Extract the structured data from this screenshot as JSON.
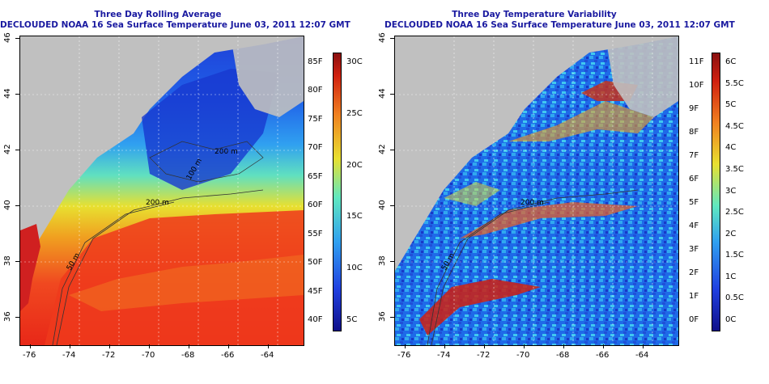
{
  "left_panel": {
    "title_line1": "Three Day Rolling Average",
    "title_line2": "DECLOUDED NOAA 16 Sea Surface Temperature June 03, 2011 12:07 GMT",
    "x_ticks": [
      "-76",
      "-74",
      "-72",
      "-70",
      "-68",
      "-66",
      "-64"
    ],
    "y_ticks": [
      "36",
      "38",
      "40",
      "42",
      "44",
      "46"
    ],
    "contours": [
      "200 m",
      "50 m",
      "200 m",
      "100 m"
    ],
    "colorbar_f": [
      "40F",
      "45F",
      "50F",
      "55F",
      "60F",
      "65F",
      "70F",
      "75F",
      "80F",
      "85F"
    ],
    "colorbar_c": [
      "5C",
      "10C",
      "15C",
      "20C",
      "25C",
      "30C"
    ]
  },
  "right_panel": {
    "title_line1": "Three Day Temperature Variability",
    "title_line2": "DECLOUDED NOAA 16 Sea Surface Temperature June 03, 2011 12:07 GMT",
    "x_ticks": [
      "-76",
      "-74",
      "-72",
      "-70",
      "-68",
      "-66",
      "-64"
    ],
    "y_ticks": [
      "36",
      "38",
      "40",
      "42",
      "44",
      "46"
    ],
    "contours": [
      "200 m",
      "50 m"
    ],
    "colorbar_f": [
      "0F",
      "1F",
      "2F",
      "3F",
      "4F",
      "5F",
      "6F",
      "7F",
      "8F",
      "9F",
      "10F",
      "11F"
    ],
    "colorbar_c": [
      "0C",
      "0.5C",
      "1C",
      "1.5C",
      "2C",
      "2.5C",
      "3C",
      "3.5C",
      "4C",
      "4.5C",
      "5C",
      "5.5C",
      "6C"
    ]
  },
  "colors": {
    "title": "#1a1aa0",
    "land": "#c0c0c0",
    "sst_warm": "#e8281a",
    "sst_cool": "#1a50e0"
  }
}
